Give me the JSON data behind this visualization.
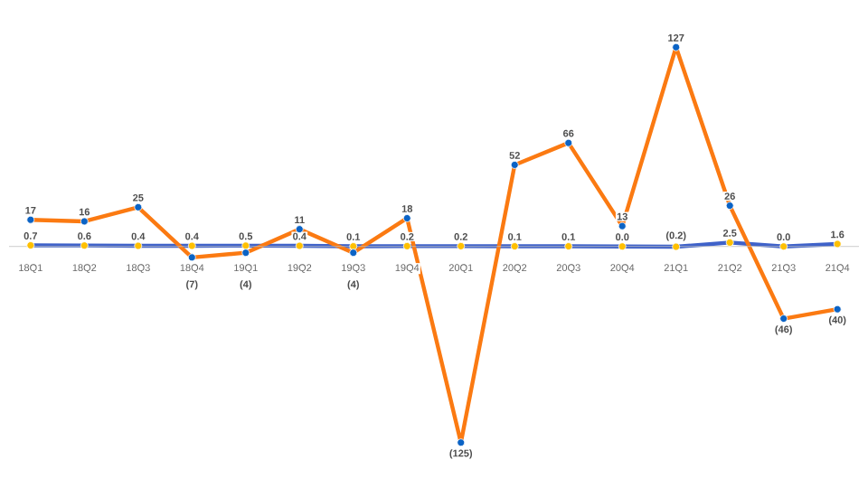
{
  "chart_data": {
    "type": "line",
    "categories": [
      "18Q1",
      "18Q2",
      "18Q3",
      "18Q4",
      "19Q1",
      "19Q2",
      "19Q3",
      "19Q4",
      "20Q1",
      "20Q2",
      "20Q3",
      "20Q4",
      "21Q1",
      "21Q2",
      "21Q3",
      "21Q4"
    ],
    "marker": "circle",
    "series": [
      {
        "color": "#3f62c9",
        "colors": [
          "#ffc000",
          "#ffc000",
          "#ffc000",
          "#ffc000",
          "#ffc000",
          "#ffc000",
          "#ffc000",
          "#ffc000",
          "#ffc000",
          "#ffc000",
          "#ffc000",
          "#ffc000",
          "#ffc000",
          "#ffc000",
          "#ffc000",
          "#ffc000"
        ],
        "values": [
          0.7,
          0.6,
          0.4,
          0.4,
          0.5,
          0.4,
          0.1,
          0.2,
          0.2,
          0.1,
          0.1,
          0.0,
          -0.2,
          2.5,
          0.0,
          1.6
        ],
        "value_labels": [
          "0.7",
          "0.6",
          "0.4",
          "0.4",
          "0.5",
          "0.4",
          "0.1",
          "0.2",
          "0.2",
          "0.1",
          "0.1",
          "0.0",
          "(0.2)",
          "2.5",
          "0.0",
          "1.6"
        ]
      },
      {
        "color": "#fb7a12",
        "colors": [
          "#0b63c5",
          "#0b63c5",
          "#0b63c5",
          "#0b63c5",
          "#0b63c5",
          "#0b63c5",
          "#0b63c5",
          "#0b63c5",
          "#0b63c5",
          "#0b63c5",
          "#0b63c5",
          "#0b63c5",
          "#0b63c5",
          "#0b63c5",
          "#0b63c5",
          "#0b63c5"
        ],
        "values": [
          17,
          16,
          25,
          -7,
          -4,
          11,
          -4,
          18,
          -125,
          52,
          66,
          13,
          127,
          26,
          -46,
          -40
        ],
        "value_labels": [
          "17",
          "16",
          "25",
          "(7)",
          "(4)",
          "11",
          "(4)",
          "18",
          "(125)",
          "52",
          "66",
          "13",
          "127",
          "26",
          "(46)",
          "(40)"
        ]
      }
    ]
  }
}
